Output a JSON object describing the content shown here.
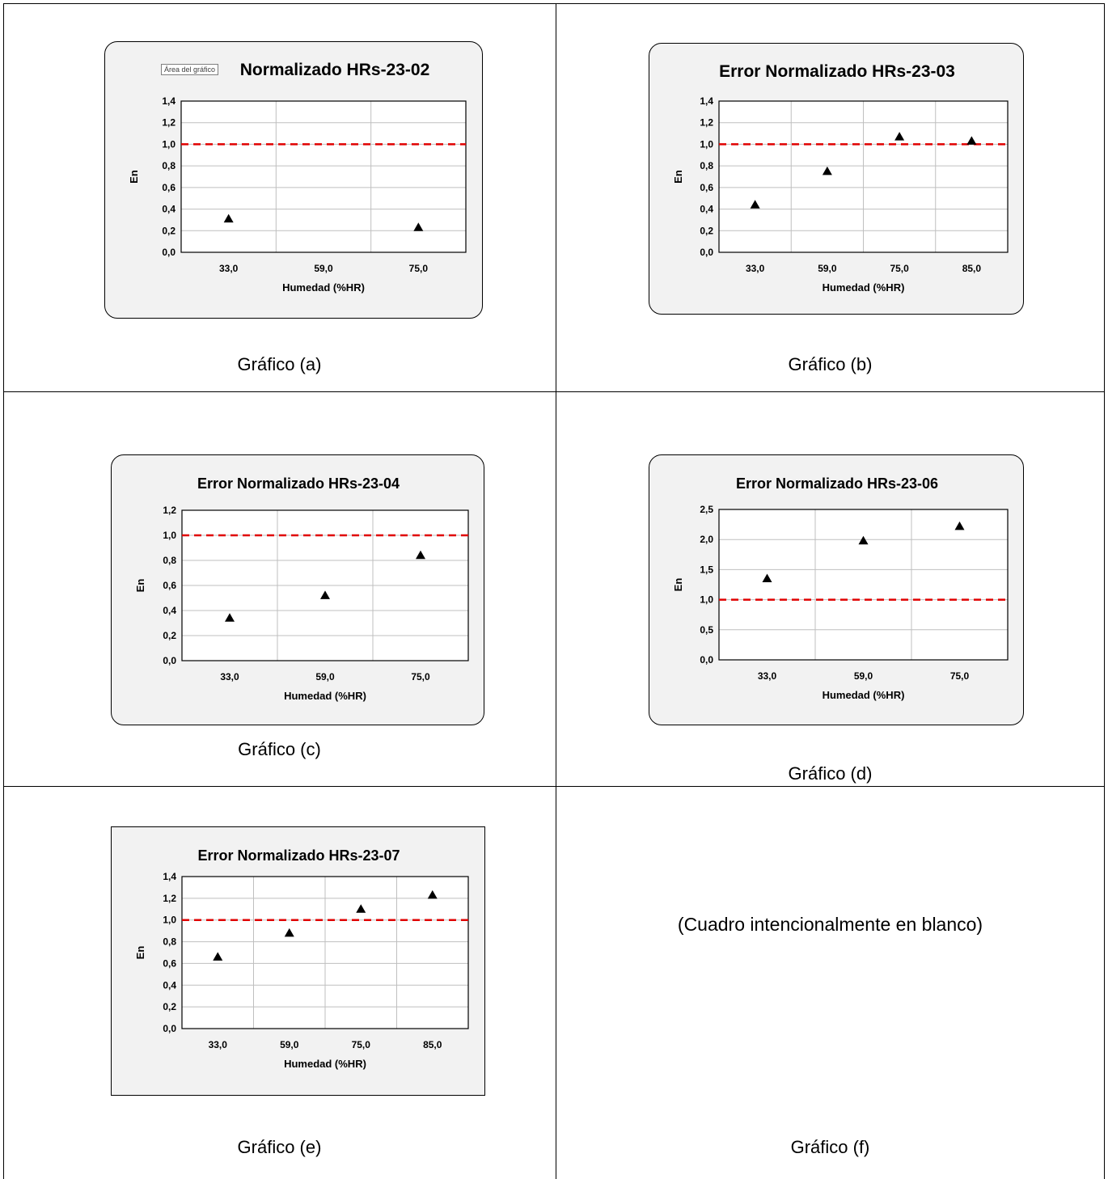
{
  "captions": {
    "a": "Gráfico (a)",
    "b": "Gráfico (b)",
    "c": "Gráfico (c)",
    "d": "Gráfico (d)",
    "e": "Gráfico (e)",
    "f": "Gráfico (f)"
  },
  "blank_note": "(Cuadro intencionalmente en blanco)",
  "tooltip": "Área del gráfico",
  "colors": {
    "reference_line": "#e00000",
    "marker": "#000000",
    "chart_bg": "#f2f2f2",
    "gridline": "#bfbfbf"
  },
  "chart_data": [
    {
      "id": "a",
      "type": "scatter",
      "title": "Normalizado HRs-23-02",
      "xlabel": "Humedad  (%HR)",
      "ylabel": "En",
      "categories": [
        "33,0",
        "59,0",
        "75,0"
      ],
      "values": [
        0.31,
        null,
        0.23
      ],
      "ylim": [
        0,
        1.4
      ],
      "yticks": [
        "0,0",
        "0,2",
        "0,4",
        "0,6",
        "0,8",
        "1,0",
        "1,2",
        "1,4"
      ],
      "reference_line": 1.0,
      "grid": true
    },
    {
      "id": "b",
      "type": "scatter",
      "title": "Error  Normalizado HRs-23-03",
      "xlabel": "Humedad  (%HR)",
      "ylabel": "En",
      "categories": [
        "33,0",
        "59,0",
        "75,0",
        "85,0"
      ],
      "values": [
        0.44,
        0.75,
        1.07,
        1.03
      ],
      "ylim": [
        0,
        1.4
      ],
      "yticks": [
        "0,0",
        "0,2",
        "0,4",
        "0,6",
        "0,8",
        "1,0",
        "1,2",
        "1,4"
      ],
      "reference_line": 1.0,
      "grid": true
    },
    {
      "id": "c",
      "type": "scatter",
      "title": "Error Normalizado HRs-23-04",
      "xlabel": "Humedad (%HR)",
      "ylabel": "En",
      "categories": [
        "33,0",
        "59,0",
        "75,0"
      ],
      "values": [
        0.34,
        0.52,
        0.84
      ],
      "ylim": [
        0,
        1.2
      ],
      "yticks": [
        "0,0",
        "0,2",
        "0,4",
        "0,6",
        "0,8",
        "1,0",
        "1,2"
      ],
      "reference_line": 1.0,
      "grid": true
    },
    {
      "id": "d",
      "type": "scatter",
      "title": "Error Normalizado HRs-23-06",
      "xlabel": "Humedad (%HR)",
      "ylabel": "En",
      "categories": [
        "33,0",
        "59,0",
        "75,0"
      ],
      "values": [
        1.35,
        1.98,
        2.22
      ],
      "ylim": [
        0,
        2.5
      ],
      "yticks": [
        "0,0",
        "0,5",
        "1,0",
        "1,5",
        "2,0",
        "2,5"
      ],
      "reference_line": 1.0,
      "grid": true
    },
    {
      "id": "e",
      "type": "scatter",
      "title": "Error Normalizado HRs-23-07",
      "xlabel": "Humedad (%HR)",
      "ylabel": "En",
      "categories": [
        "33,0",
        "59,0",
        "75,0",
        "85,0"
      ],
      "values": [
        0.66,
        0.88,
        1.1,
        1.23
      ],
      "ylim": [
        0,
        1.4
      ],
      "yticks": [
        "0,0",
        "0,2",
        "0,4",
        "0,6",
        "0,8",
        "1,0",
        "1,2",
        "1,4"
      ],
      "reference_line": 1.0,
      "grid": true
    }
  ]
}
